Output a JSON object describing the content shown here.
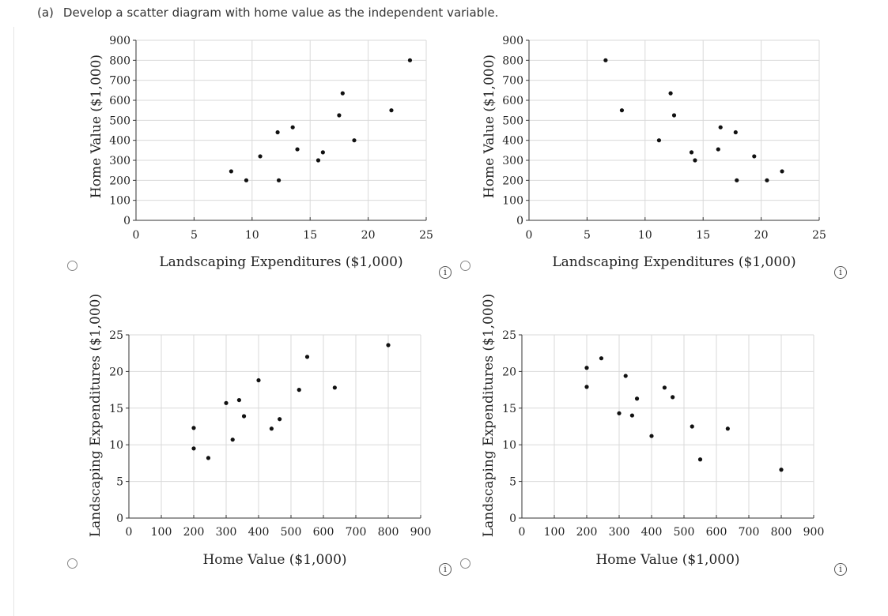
{
  "question": {
    "part": "(a)",
    "text": "Develop a scatter diagram with home value as the independent variable."
  },
  "icons": {
    "radio": "radio-button",
    "info": "info-icon"
  },
  "info_label": "i",
  "chart_data": [
    {
      "type": "scatter",
      "title": "",
      "xlabel": "Landscaping Expenditures ($1,000)",
      "ylabel": "Home Value ($1,000)",
      "xlim": [
        0,
        25
      ],
      "ylim": [
        0,
        900
      ],
      "xticks": [
        0,
        5,
        10,
        15,
        20,
        25
      ],
      "yticks": [
        0,
        100,
        200,
        300,
        400,
        500,
        600,
        700,
        800,
        900
      ],
      "grid": true,
      "points": [
        {
          "x": 8.2,
          "y": 245
        },
        {
          "x": 9.5,
          "y": 200
        },
        {
          "x": 10.7,
          "y": 320
        },
        {
          "x": 12.2,
          "y": 440
        },
        {
          "x": 12.3,
          "y": 200
        },
        {
          "x": 13.5,
          "y": 465
        },
        {
          "x": 13.9,
          "y": 355
        },
        {
          "x": 15.7,
          "y": 300
        },
        {
          "x": 16.1,
          "y": 340
        },
        {
          "x": 17.5,
          "y": 525
        },
        {
          "x": 17.8,
          "y": 635
        },
        {
          "x": 18.8,
          "y": 400
        },
        {
          "x": 22.0,
          "y": 550
        },
        {
          "x": 23.6,
          "y": 800
        }
      ]
    },
    {
      "type": "scatter",
      "title": "",
      "xlabel": "Landscaping Expenditures ($1,000)",
      "ylabel": "Home Value ($1,000)",
      "xlim": [
        0,
        25
      ],
      "ylim": [
        0,
        900
      ],
      "xticks": [
        0,
        5,
        10,
        15,
        20,
        25
      ],
      "yticks": [
        0,
        100,
        200,
        300,
        400,
        500,
        600,
        700,
        800,
        900
      ],
      "grid": true,
      "points": [
        {
          "x": 6.6,
          "y": 800
        },
        {
          "x": 8.0,
          "y": 550
        },
        {
          "x": 11.2,
          "y": 400
        },
        {
          "x": 12.2,
          "y": 635
        },
        {
          "x": 12.5,
          "y": 525
        },
        {
          "x": 14.0,
          "y": 340
        },
        {
          "x": 14.3,
          "y": 300
        },
        {
          "x": 16.3,
          "y": 355
        },
        {
          "x": 16.5,
          "y": 465
        },
        {
          "x": 17.8,
          "y": 440
        },
        {
          "x": 17.9,
          "y": 200
        },
        {
          "x": 19.4,
          "y": 320
        },
        {
          "x": 20.5,
          "y": 200
        },
        {
          "x": 21.8,
          "y": 245
        }
      ]
    },
    {
      "type": "scatter",
      "title": "",
      "xlabel": "Home Value ($1,000)",
      "ylabel": "Landscaping Expenditures ($1,000)",
      "xlim": [
        0,
        900
      ],
      "ylim": [
        0,
        25
      ],
      "xticks": [
        0,
        100,
        200,
        300,
        400,
        500,
        600,
        700,
        800,
        900
      ],
      "yticks": [
        0,
        5,
        10,
        15,
        20,
        25
      ],
      "grid": true,
      "points": [
        {
          "x": 200,
          "y": 12.3
        },
        {
          "x": 200,
          "y": 9.5
        },
        {
          "x": 245,
          "y": 8.2
        },
        {
          "x": 300,
          "y": 15.7
        },
        {
          "x": 320,
          "y": 10.7
        },
        {
          "x": 340,
          "y": 16.1
        },
        {
          "x": 355,
          "y": 13.9
        },
        {
          "x": 400,
          "y": 18.8
        },
        {
          "x": 440,
          "y": 12.2
        },
        {
          "x": 465,
          "y": 13.5
        },
        {
          "x": 525,
          "y": 17.5
        },
        {
          "x": 550,
          "y": 22.0
        },
        {
          "x": 635,
          "y": 17.8
        },
        {
          "x": 800,
          "y": 23.6
        }
      ]
    },
    {
      "type": "scatter",
      "title": "",
      "xlabel": "Home Value ($1,000)",
      "ylabel": "Landscaping Expenditures ($1,000)",
      "xlim": [
        0,
        900
      ],
      "ylim": [
        0,
        25
      ],
      "xticks": [
        0,
        100,
        200,
        300,
        400,
        500,
        600,
        700,
        800,
        900
      ],
      "yticks": [
        0,
        5,
        10,
        15,
        20,
        25
      ],
      "grid": true,
      "points": [
        {
          "x": 200,
          "y": 20.5
        },
        {
          "x": 200,
          "y": 17.9
        },
        {
          "x": 245,
          "y": 21.8
        },
        {
          "x": 300,
          "y": 14.3
        },
        {
          "x": 320,
          "y": 19.4
        },
        {
          "x": 340,
          "y": 14.0
        },
        {
          "x": 355,
          "y": 16.3
        },
        {
          "x": 400,
          "y": 11.2
        },
        {
          "x": 440,
          "y": 17.8
        },
        {
          "x": 465,
          "y": 16.5
        },
        {
          "x": 525,
          "y": 12.5
        },
        {
          "x": 550,
          "y": 8.0
        },
        {
          "x": 635,
          "y": 12.2
        },
        {
          "x": 800,
          "y": 6.6
        }
      ]
    }
  ]
}
